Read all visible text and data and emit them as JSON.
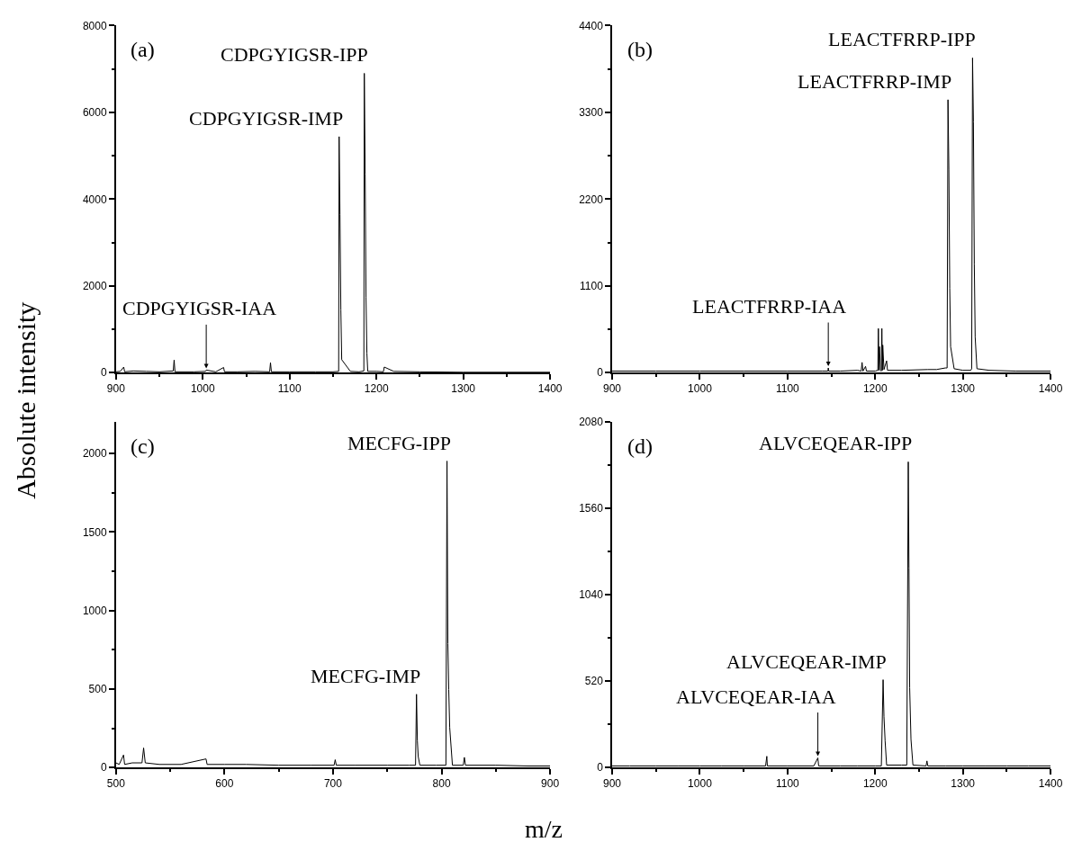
{
  "chart_data": [
    {
      "type": "line",
      "ylabel": "Absolute intensity",
      "xlim": [
        900,
        1400
      ],
      "xticks": [
        900,
        1000,
        1100,
        1200,
        1300,
        1400
      ],
      "ylim": [
        0,
        8000
      ],
      "yticks": [
        0,
        2000,
        4000,
        6000,
        8000
      ],
      "marker": "none",
      "line_style": "solid",
      "x": [
        900,
        905,
        909,
        910,
        920,
        935,
        950,
        966,
        967,
        968,
        990,
        1003,
        1004,
        1015,
        1024,
        1025,
        1040,
        1060,
        1077,
        1078,
        1079,
        1100,
        1130,
        1150,
        1156.5,
        1157,
        1158,
        1159,
        1160,
        1170,
        1180,
        1185.5,
        1186,
        1187,
        1188,
        1189,
        1190,
        1200,
        1208,
        1209,
        1220,
        1250,
        1300,
        1350,
        1400
      ],
      "series": [
        {
          "color": "#000000",
          "values": [
            20,
            30,
            130,
            20,
            40,
            30,
            20,
            40,
            290,
            20,
            20,
            30,
            60,
            20,
            120,
            20,
            20,
            30,
            20,
            230,
            20,
            20,
            20,
            20,
            30,
            5440,
            3650,
            1450,
            300,
            30,
            20,
            40,
            6900,
            4580,
            1730,
            450,
            30,
            30,
            20,
            130,
            30,
            20,
            10,
            10,
            10
          ]
        }
      ],
      "annotations": [
        "(a)",
        {
          "text": "CDPGYIGSR-IMP",
          "x": 1157,
          "y": 5440
        },
        {
          "text": "CDPGYIGSR-IPP",
          "x": 1186,
          "y": 6900
        },
        {
          "text": "CDPGYIGSR-IAA",
          "x": 1004,
          "y": 60
        }
      ]
    },
    {
      "type": "line",
      "xlim": [
        900,
        1400
      ],
      "xticks": [
        900,
        1000,
        1100,
        1200,
        1300,
        1400
      ],
      "ylim": [
        0,
        4400
      ],
      "yticks": [
        0,
        1100,
        2200,
        3300,
        4400
      ],
      "marker": "none",
      "line_style": "solid",
      "x": [
        900,
        950,
        1000,
        1050,
        1100,
        1140,
        1146,
        1146.5,
        1147,
        1160,
        1180,
        1184,
        1185,
        1186,
        1189,
        1190,
        1200,
        1203,
        1203.6,
        1204.2,
        1205,
        1206,
        1207,
        1207.6,
        1208.2,
        1208.6,
        1210,
        1213,
        1214,
        1230,
        1260,
        1270,
        1280,
        1282,
        1283,
        1284,
        1285,
        1286,
        1290,
        1300,
        1309,
        1310,
        1311,
        1312,
        1313,
        1314,
        1316,
        1330,
        1360,
        1400
      ],
      "series": [
        {
          "color": "#000000",
          "values": [
            20,
            20,
            20,
            20,
            20,
            20,
            20,
            60,
            20,
            20,
            30,
            20,
            130,
            20,
            80,
            20,
            20,
            30,
            560,
            30,
            330,
            30,
            20,
            560,
            30,
            350,
            40,
            150,
            30,
            30,
            40,
            40,
            60,
            60,
            3460,
            2570,
            1070,
            330,
            50,
            30,
            30,
            50,
            3990,
            3180,
            1380,
            450,
            50,
            30,
            20,
            20
          ]
        }
      ],
      "annotations": [
        "(b)",
        {
          "text": "LEACTFRRP-IMP",
          "x": 1283,
          "y": 3460
        },
        {
          "text": "LEACTFRRP-IPP",
          "x": 1311,
          "y": 3990
        },
        {
          "text": "LEACTFRRP-IAA",
          "x": 1146.5,
          "y": 60
        }
      ]
    },
    {
      "type": "line",
      "xlabel": "m/z",
      "xlim": [
        500,
        900
      ],
      "xticks": [
        500,
        600,
        700,
        800,
        900
      ],
      "ylim": [
        0,
        2200
      ],
      "yticks": [
        0,
        500,
        1000,
        1500,
        2000
      ],
      "marker": "none",
      "line_style": "solid",
      "x": [
        500,
        503,
        507,
        508,
        515,
        524,
        525.5,
        527,
        540,
        560,
        583,
        584,
        600,
        620,
        650,
        680,
        701,
        702,
        703,
        720,
        750,
        770,
        776,
        776.9,
        777.7,
        778.5,
        780,
        795,
        804,
        805,
        805.8,
        806.6,
        807.5,
        810,
        820,
        821,
        822,
        850,
        880,
        900
      ],
      "series": [
        {
          "color": "#000000",
          "values": [
            30,
            20,
            80,
            20,
            30,
            30,
            125,
            30,
            20,
            20,
            55,
            20,
            20,
            20,
            15,
            15,
            15,
            50,
            15,
            15,
            15,
            15,
            15,
            467,
            171,
            70,
            15,
            15,
            15,
            1952,
            789,
            497,
            255,
            15,
            15,
            65,
            15,
            15,
            10,
            10
          ]
        }
      ],
      "annotations": [
        "(c)",
        {
          "text": "MECFG-IMP",
          "x": 776.9,
          "y": 467
        },
        {
          "text": "MECFG-IPP",
          "x": 805,
          "y": 1952
        }
      ]
    },
    {
      "type": "line",
      "xlim": [
        900,
        1400
      ],
      "xticks": [
        900,
        1000,
        1100,
        1200,
        1300,
        1400
      ],
      "ylim": [
        0,
        2080
      ],
      "yticks": [
        0,
        520,
        1040,
        1560,
        2080
      ],
      "marker": "none",
      "line_style": "solid",
      "x": [
        900,
        920,
        950,
        975,
        1000,
        1025,
        1050,
        1075,
        1076.4,
        1077,
        1100,
        1130,
        1134.6,
        1135.5,
        1160,
        1180,
        1200,
        1207,
        1209,
        1210,
        1211.3,
        1213,
        1230,
        1236,
        1237.7,
        1238.5,
        1239.3,
        1240.8,
        1243,
        1258,
        1259,
        1260,
        1280,
        1300,
        1325,
        1350,
        1375,
        1400
      ],
      "series": [
        {
          "color": "#000000",
          "values": [
            10,
            10,
            10,
            10,
            10,
            10,
            10,
            10,
            68,
            10,
            10,
            10,
            58,
            10,
            10,
            10,
            10,
            10,
            529,
            306,
            160,
            15,
            15,
            15,
            1841,
            1202,
            481,
            170,
            15,
            10,
            40,
            10,
            10,
            10,
            10,
            10,
            10,
            10
          ]
        }
      ],
      "annotations": [
        "(d)",
        {
          "text": "ALVCEQEAR-IMP",
          "x": 1209,
          "y": 529
        },
        {
          "text": "ALVCEQEAR-IPP",
          "x": 1237.7,
          "y": 1841
        },
        {
          "text": "ALVCEQEAR-IAA",
          "x": 1134.6,
          "y": 58
        }
      ]
    }
  ]
}
